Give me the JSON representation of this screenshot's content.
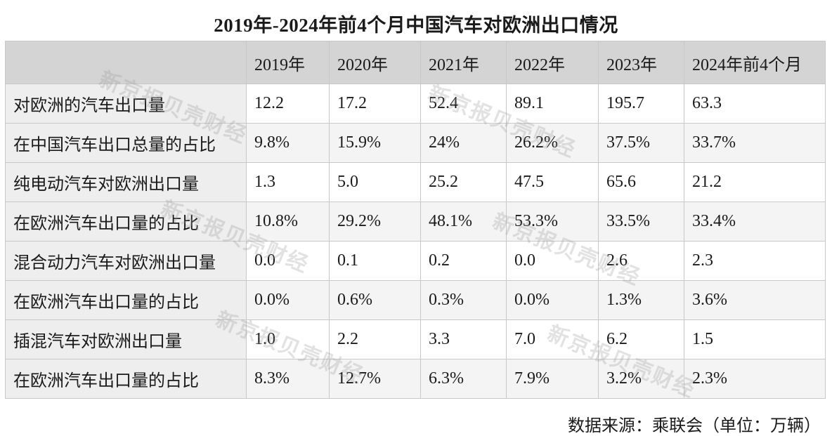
{
  "title": "2019年-2024年前4个月中国汽车对欧洲出口情况",
  "source": "数据来源：乘联会（单位：万辆）",
  "watermark": "新京报贝壳财经",
  "chart_data": {
    "type": "table",
    "columns": [
      "2019年",
      "2020年",
      "2021年",
      "2022年",
      "2023年",
      "2024年前4个月"
    ],
    "rows": [
      {
        "label": "对欧洲的汽车出口量",
        "values": [
          "12.2",
          "17.2",
          "52.4",
          "89.1",
          "195.7",
          "63.3"
        ]
      },
      {
        "label": "在中国汽车出口总量的占比",
        "values": [
          "9.8%",
          "15.9%",
          "24%",
          "26.2%",
          "37.5%",
          "33.7%"
        ]
      },
      {
        "label": "纯电动汽车对欧洲出口量",
        "values": [
          "1.3",
          "5.0",
          "25.2",
          "47.5",
          "65.6",
          "21.2"
        ]
      },
      {
        "label": "在欧洲汽车出口量的占比",
        "values": [
          "10.8%",
          "29.2%",
          "48.1%",
          "53.3%",
          "33.5%",
          "33.4%"
        ]
      },
      {
        "label": "混合动力汽车对欧洲出口量",
        "values": [
          "0.0",
          "0.1",
          "0.2",
          "0.0",
          "2.6",
          "2.3"
        ]
      },
      {
        "label": "在欧洲汽车出口量的占比",
        "values": [
          "0.0%",
          "0.6%",
          "0.3%",
          "0.0%",
          "1.3%",
          "3.6%"
        ]
      },
      {
        "label": "插混汽车对欧洲出口量",
        "values": [
          "1.0",
          "2.2",
          "3.3",
          "7.0",
          "6.2",
          "1.5"
        ]
      },
      {
        "label": "在欧洲汽车出口量的占比",
        "values": [
          "8.3%",
          "12.7%",
          "6.3%",
          "7.9%",
          "3.2%",
          "2.3%"
        ]
      }
    ]
  }
}
